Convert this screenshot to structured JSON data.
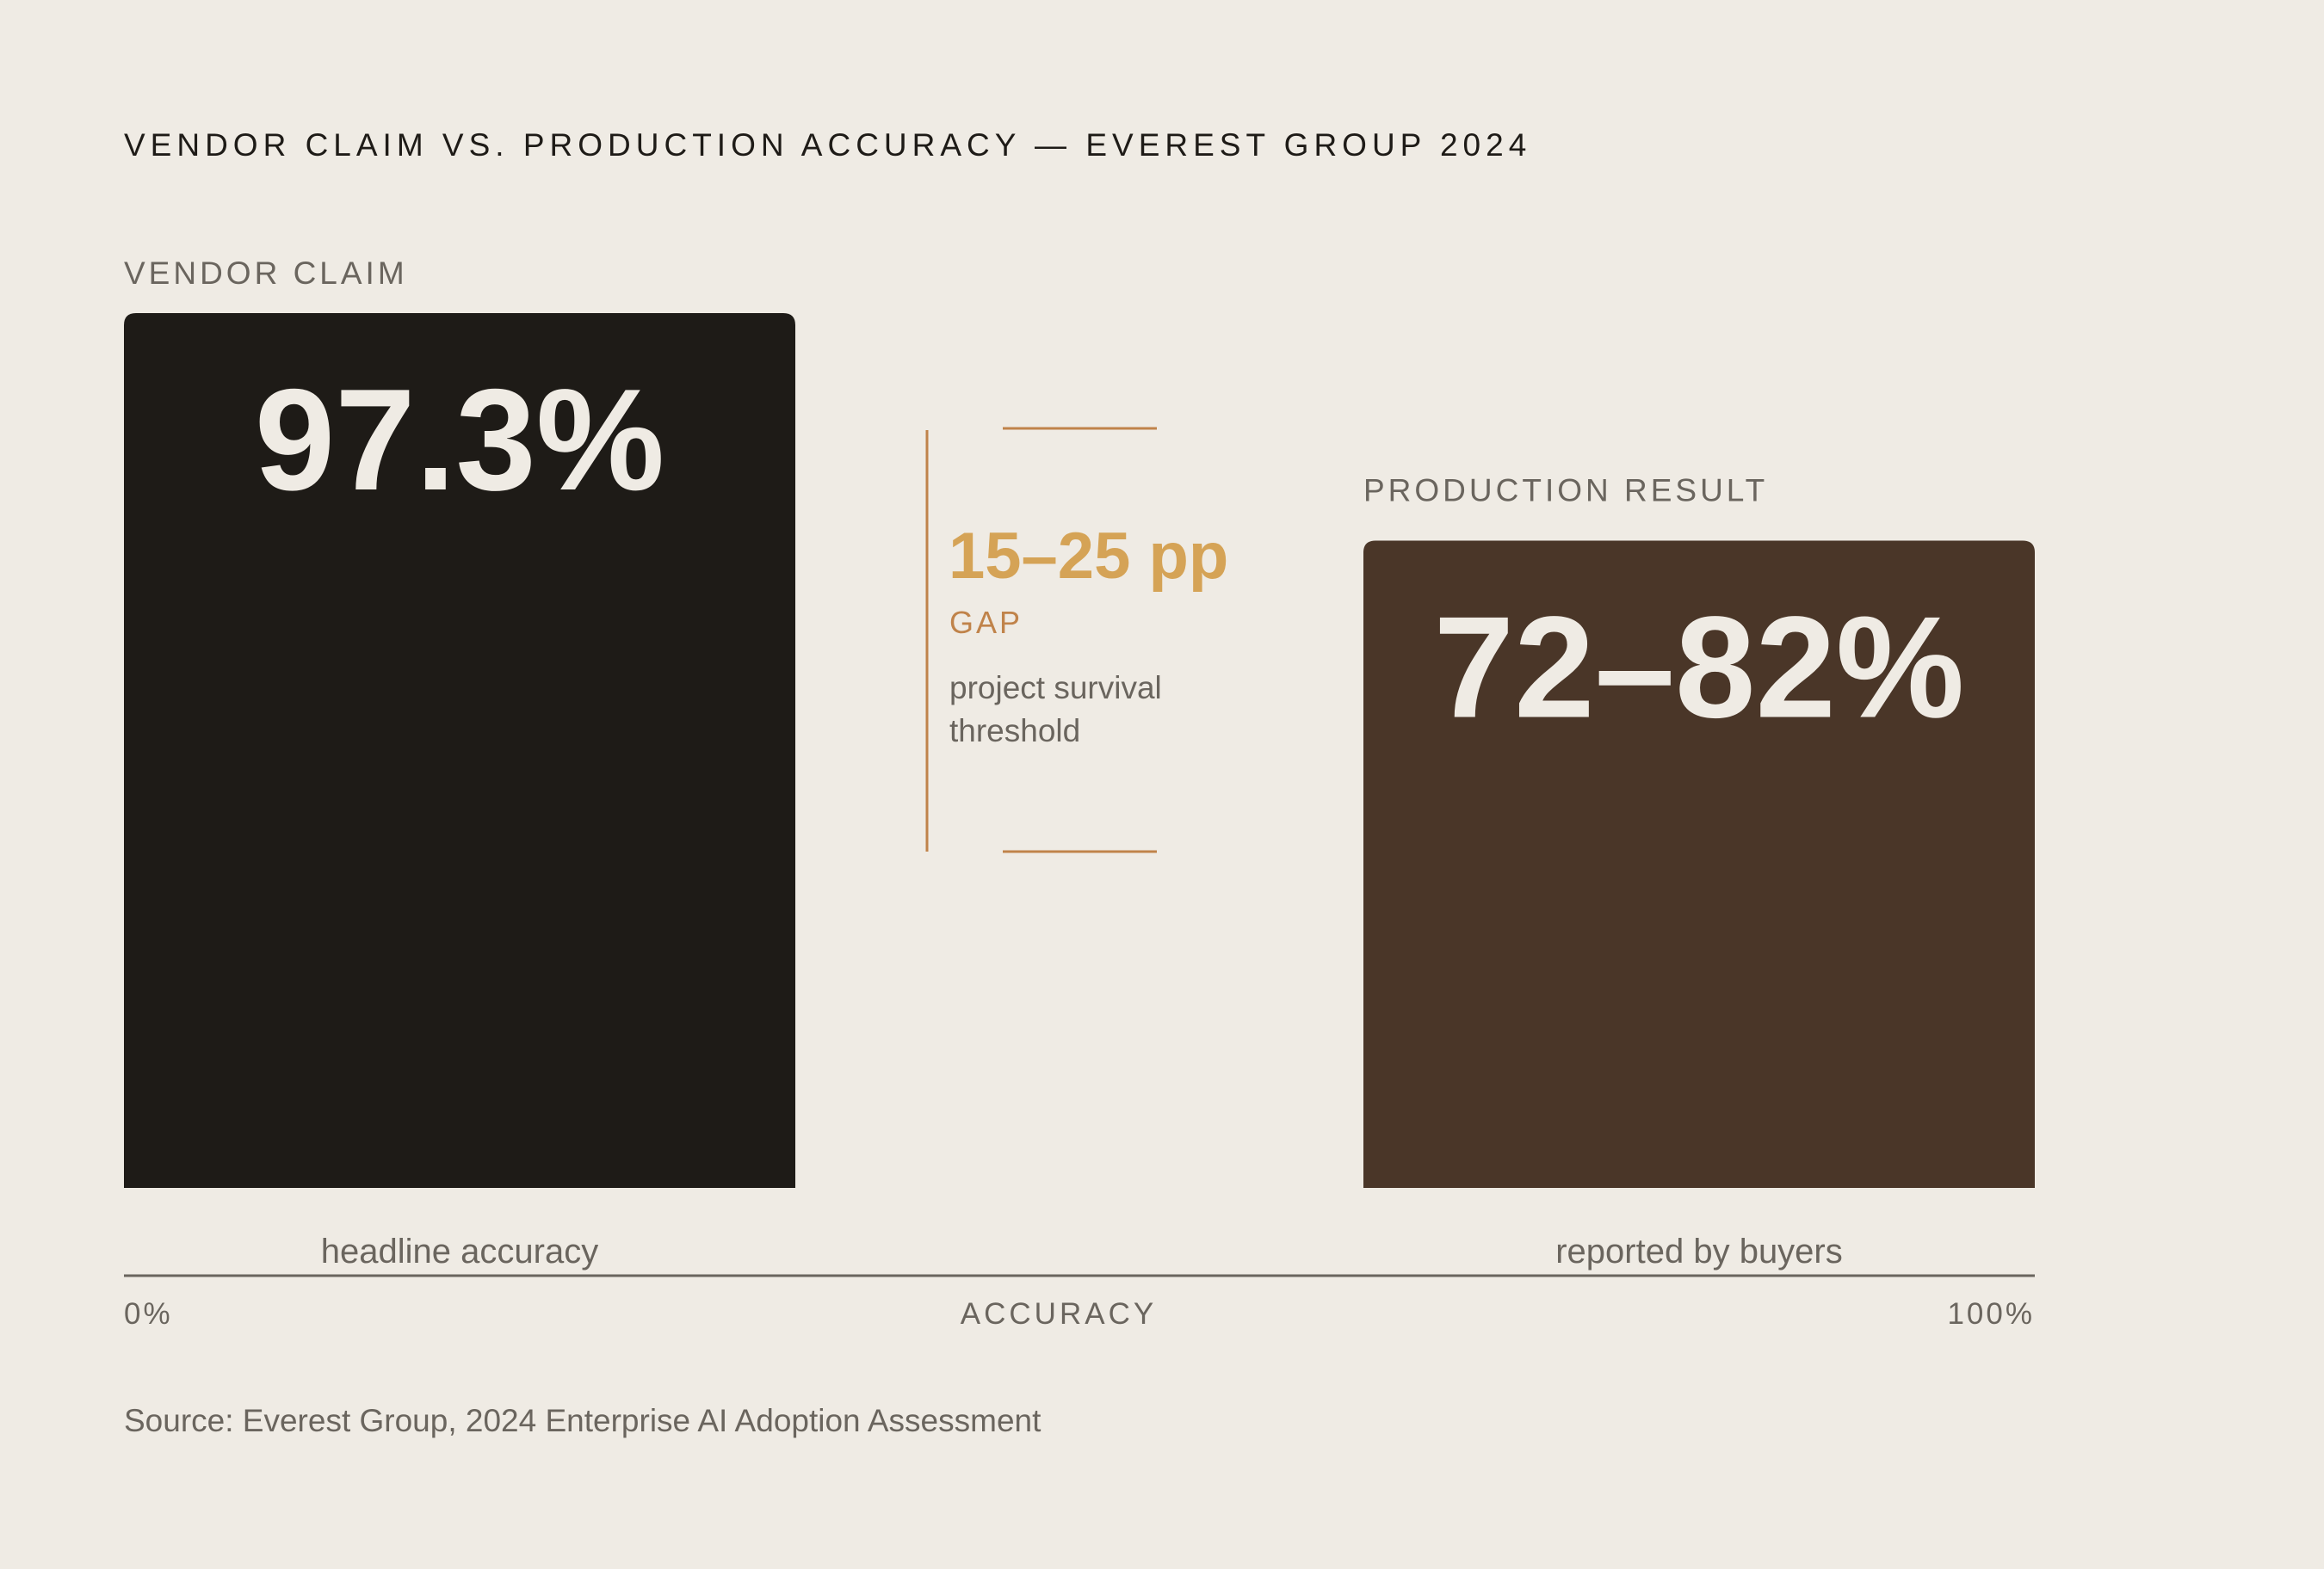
{
  "chart_data": {
    "type": "bar",
    "title": "VENDOR CLAIM VS. PRODUCTION ACCURACY — EVEREST GROUP 2024",
    "xlabel": "ACCURACY",
    "ylabel": "",
    "ylim": [
      0,
      100
    ],
    "axis_ticks": [
      "0%",
      "100%"
    ],
    "categories": [
      "headline accuracy",
      "reported by buyers"
    ],
    "series": [
      {
        "name": "VENDOR CLAIM",
        "value_label": "97.3%",
        "value": 97.3
      },
      {
        "name": "PRODUCTION RESULT",
        "value_label": "72–82%",
        "value": 72,
        "range": [
          72,
          82
        ]
      }
    ],
    "annotation": {
      "value_label": "15–25 pp",
      "label": "GAP",
      "note_lines": [
        "project survival",
        "threshold"
      ]
    },
    "source": "Source: Everest Group, 2024 Enterprise AI Adoption Assessment",
    "grid": false,
    "legend": "none"
  },
  "colors": {
    "background": "#efebe4",
    "vendor_bar": "#1e1b17",
    "production_bar": "#4a3628",
    "accent": "#d5a356",
    "bracket": "#c0834a",
    "axis": "#6a655e"
  }
}
